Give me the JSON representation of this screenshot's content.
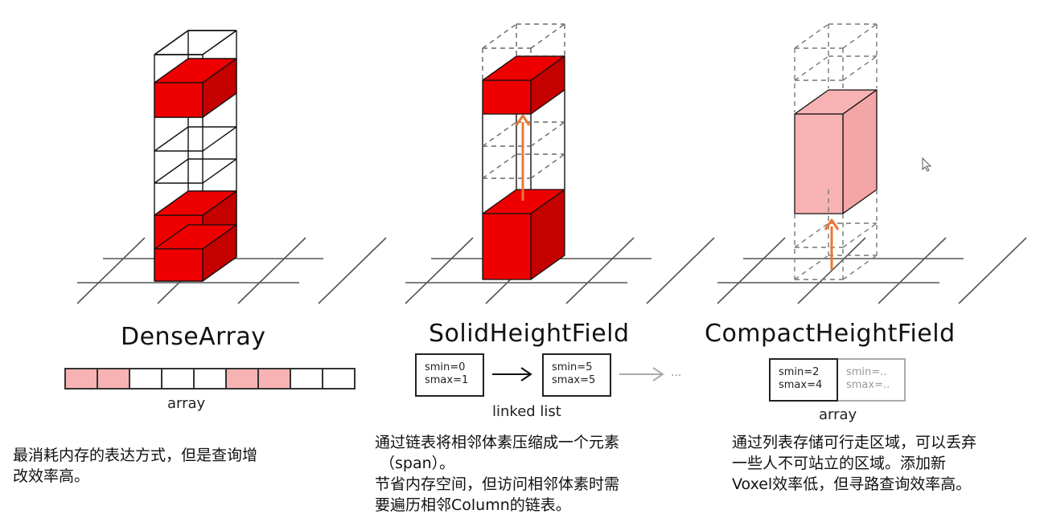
{
  "panels": {
    "dense": {
      "title": "DenseArray",
      "caption": "array",
      "cells": [
        true,
        true,
        false,
        false,
        false,
        true,
        true,
        false,
        false
      ],
      "desc": [
        "最消耗内存的表达方式，但是查询增",
        "改效率高。"
      ]
    },
    "solid": {
      "title": "SolidHeightField",
      "caption": "linked list",
      "nodes": [
        {
          "line1": "smin=0",
          "line2": "smax=1"
        },
        {
          "line1": "smin=5",
          "line2": "smax=5"
        }
      ],
      "ellipsis": "...",
      "desc": [
        "通过链表将相邻体素压缩成一个元素",
        "（span）。",
        "节省内存空间，但访问相邻体素时需",
        "要遍历相邻Column的链表。"
      ]
    },
    "compact": {
      "title": "CompactHeightField",
      "caption": "array",
      "cells": [
        {
          "line1": "smin=2",
          "line2": "smax=4"
        },
        {
          "line1": "smin=..",
          "line2": "smax=.."
        }
      ],
      "desc": [
        "通过列表存储可行走区域，可以丢弃",
        "一些人不可站立的区域。添加新",
        "Voxel效率低，但寻路查询效率高。"
      ]
    }
  },
  "colors": {
    "solid_red": "#ee0000",
    "solid_red_side": "#c40000",
    "pink": "#f7b3b3",
    "arrow": "#ee7733"
  }
}
